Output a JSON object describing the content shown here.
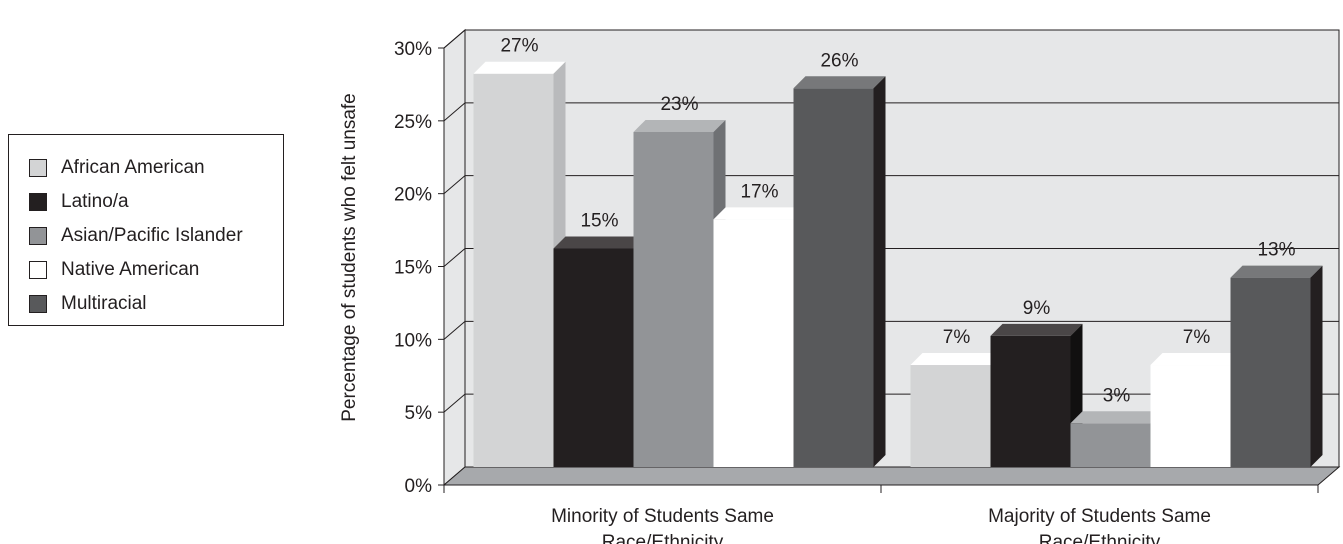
{
  "chart_data": {
    "type": "bar",
    "title": "",
    "xlabel": "",
    "ylabel": "Percentage of students who felt unsafe",
    "ylim": [
      0,
      30
    ],
    "yticks": [
      "0%",
      "5%",
      "10%",
      "15%",
      "20%",
      "25%",
      "30%"
    ],
    "grid": true,
    "legend_position": "left",
    "categories": [
      "Minority of Students Same Race/Ethnicity",
      "Majority of Students Same Race/Ethnicity"
    ],
    "category_lines": [
      [
        "Minority of Students Same",
        "Race/Ethnicity"
      ],
      [
        "Majority of Students Same",
        "Race/Ethnicity"
      ]
    ],
    "series": [
      {
        "name": "African American",
        "values": [
          27,
          7
        ],
        "labels": [
          "27%",
          "7%"
        ],
        "color": "#d3d4d5",
        "top": "#ffffff",
        "side": "#b9babc"
      },
      {
        "name": "Latino/a",
        "values": [
          15,
          9
        ],
        "labels": [
          "15%",
          "9%"
        ],
        "color": "#231f20",
        "top": "#4a4647",
        "side": "#111010"
      },
      {
        "name": "Asian/Pacific Islander",
        "values": [
          23,
          3
        ],
        "labels": [
          "23%",
          "3%"
        ],
        "color": "#929497",
        "top": "#b3b5b7",
        "side": "#6f7174"
      },
      {
        "name": "Native American",
        "values": [
          17,
          7
        ],
        "labels": [
          "17%",
          "7%"
        ],
        "color": "#ffffff",
        "top": "#ffffff",
        "side": "#ffffff"
      },
      {
        "name": "Multiracial",
        "values": [
          26,
          13
        ],
        "labels": [
          "26%",
          "13%"
        ],
        "color": "#58595b",
        "top": "#77787a",
        "side": "#231f20"
      }
    ],
    "colors": {
      "wall": "#e6e7e8",
      "floor": "#a7a9ac",
      "grid": "#231f20"
    }
  }
}
